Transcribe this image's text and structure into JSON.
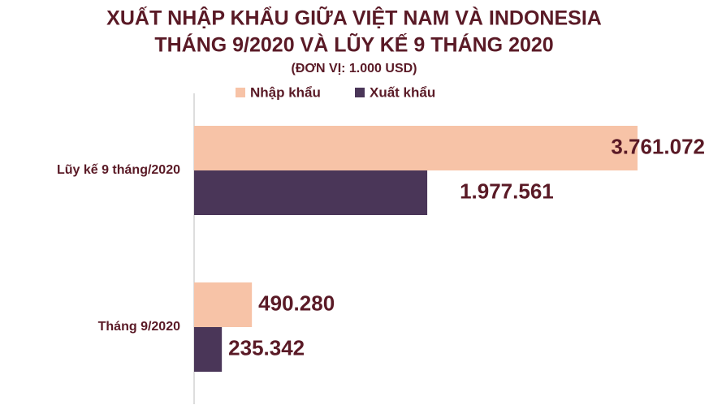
{
  "chart_data": {
    "type": "hbar",
    "title": [
      "XUẤT NHẬP KHẨU GIỮA VIỆT NAM VÀ INDONESIA",
      "THÁNG 9/2020 VÀ LŨY KẾ 9 THÁNG 2020"
    ],
    "subtitle": "(ĐƠN VỊ: 1.000 USD)",
    "categories": [
      "Lũy kế 9 tháng/2020",
      "Tháng 9/2020"
    ],
    "series": [
      {
        "name": "Nhập khẩu",
        "color": "#f7c3a7",
        "values": [
          3761072,
          490280
        ],
        "value_labels": [
          "3.761.072",
          "490.280"
        ]
      },
      {
        "name": "Xuất khẩu",
        "color": "#4a3658",
        "values": [
          1977561,
          235342
        ],
        "value_labels": [
          "1.977.561",
          "235.342"
        ]
      }
    ]
  }
}
